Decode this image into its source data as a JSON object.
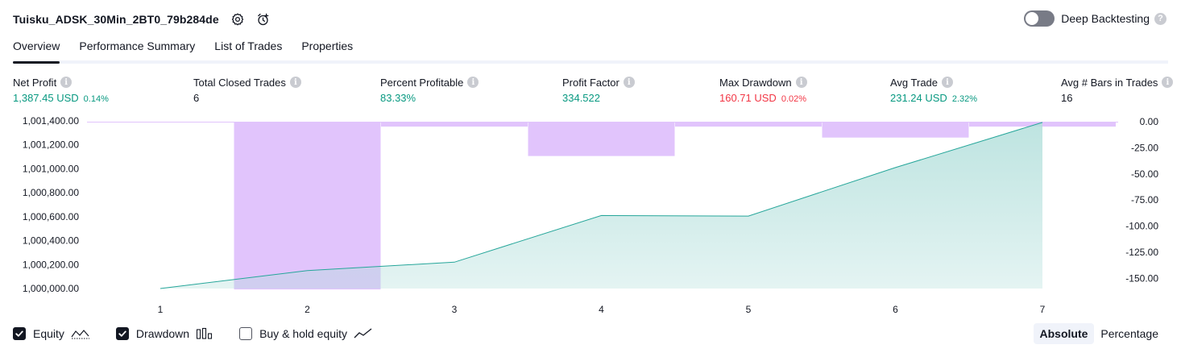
{
  "header": {
    "title": "Tuisku_ADSK_30Min_2BT0_79b284de",
    "deep_backtesting_label": "Deep Backtesting",
    "help_glyph": "?"
  },
  "tabs": [
    {
      "label": "Overview",
      "active": true
    },
    {
      "label": "Performance Summary",
      "active": false
    },
    {
      "label": "List of Trades",
      "active": false
    },
    {
      "label": "Properties",
      "active": false
    }
  ],
  "metrics": {
    "info_glyph": "i",
    "net_profit": {
      "label": "Net Profit",
      "value": "1,387.45 USD",
      "sub": "0.14%"
    },
    "total_closed_trades": {
      "label": "Total Closed Trades",
      "value": "6"
    },
    "percent_profitable": {
      "label": "Percent Profitable",
      "value": "83.33%"
    },
    "profit_factor": {
      "label": "Profit Factor",
      "value": "334.522"
    },
    "max_drawdown": {
      "label": "Max Drawdown",
      "value": "160.71 USD",
      "sub": "0.02%"
    },
    "avg_trade": {
      "label": "Avg Trade",
      "value": "231.24 USD",
      "sub": "2.32%"
    },
    "avg_bars": {
      "label": "Avg # Bars in Trades",
      "value": "16"
    }
  },
  "colors": {
    "profit": "#089981",
    "loss": "#f23645",
    "equity_line": "#26a69a",
    "equity_fill": "#b2dfdb",
    "drawdown_bar": "#e1c4fc"
  },
  "chart_data": {
    "type": "line",
    "x": [
      1,
      2,
      3,
      4,
      5,
      6,
      7
    ],
    "x_tick_labels": [
      "1",
      "2",
      "3",
      "4",
      "5",
      "6",
      "7"
    ],
    "left_axis": {
      "ylim": [
        1000000,
        1001400
      ],
      "tick_values": [
        1000000,
        1000200,
        1000400,
        1000600,
        1000800,
        1001000,
        1001200,
        1001400
      ],
      "tick_labels": [
        "1,000,000.00",
        "1,000,200.00",
        "1,000,400.00",
        "1,000,600.00",
        "1,000,800.00",
        "1,001,000.00",
        "1,001,200.00",
        "1,001,400.00"
      ]
    },
    "right_axis": {
      "ylim": [
        -160,
        0
      ],
      "tick_values": [
        0,
        -25,
        -50,
        -75,
        -100,
        -125,
        -150
      ],
      "tick_labels": [
        "0.00",
        "-25.00",
        "-50.00",
        "-75.00",
        "-100.00",
        "-125.00",
        "-150.00"
      ]
    },
    "series": [
      {
        "name": "Equity",
        "type": "area",
        "axis": "left",
        "x": [
          1,
          2,
          3,
          4,
          5,
          6,
          7
        ],
        "values": [
          1000000,
          1000150,
          1000220,
          1000610,
          1000605,
          1001010,
          1001387
        ]
      },
      {
        "name": "Drawdown",
        "type": "bar",
        "axis": "right",
        "x": [
          1,
          2,
          3,
          4,
          5,
          6,
          7
        ],
        "values": [
          0,
          -160.7,
          -4.7,
          -32.9,
          -4.7,
          -15.2,
          -4.7
        ]
      }
    ]
  },
  "footer": {
    "equity_label": "Equity",
    "drawdown_label": "Drawdown",
    "buy_hold_label": "Buy & hold equity",
    "mode_absolute": "Absolute",
    "mode_percentage": "Percentage"
  }
}
